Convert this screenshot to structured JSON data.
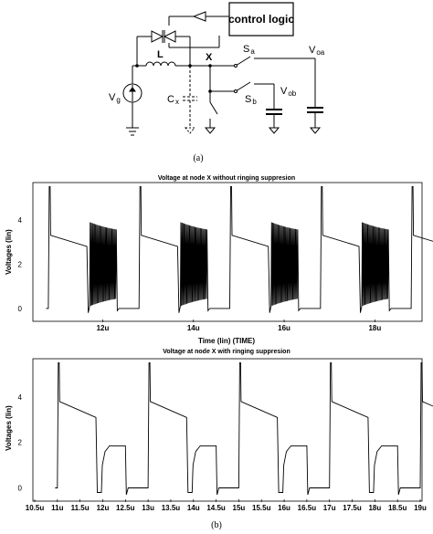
{
  "circuit": {
    "control_label": "control logic",
    "labels": {
      "L": "L",
      "X": "X",
      "Sa": "S",
      "Sa_sub": "a",
      "Sb": "S",
      "Sb_sub": "b",
      "Voa": "V",
      "Voa_sub": "oa",
      "Vob": "V",
      "Vob_sub": "ob",
      "Vg": "V",
      "Vg_sub": "g",
      "Cx": "C",
      "Cx_sub": "x"
    }
  },
  "captions": {
    "a": "(a)",
    "b": "(b)"
  },
  "chart_data": [
    {
      "type": "line",
      "title": "Voltage at node X without ringing suppresion",
      "xlabel": "Time (lin) (TIME)",
      "ylabel": "Voltages (lin)",
      "x_ticks": [
        "12u",
        "14u",
        "16u",
        "18u"
      ],
      "y_ticks": [
        "0",
        "2",
        "4"
      ],
      "ylim": [
        -0.5,
        5.6
      ],
      "xlim": [
        10.5,
        19.0
      ],
      "period_us": 2.0,
      "cycle_start_us": 10.8,
      "peak_v": 5.5,
      "plateau_v": [
        3.3,
        2.8
      ],
      "ring_center_v": 2.0,
      "ring_amplitude_v": 1.9,
      "low_v": 0.0
    },
    {
      "type": "line",
      "title": "Voltage at node X with ringing suppresion",
      "xlabel": "",
      "ylabel": "Voltages (lin)",
      "x_ticks": [
        "10.5u",
        "11u",
        "11.5u",
        "12u",
        "12.5u",
        "13u",
        "13.5u",
        "14u",
        "14.5u",
        "15u",
        "15.5u",
        "16u",
        "16.5u",
        "17u",
        "17.5u",
        "18u",
        "18.5u",
        "19u"
      ],
      "y_ticks": [
        "0",
        "2",
        "4"
      ],
      "ylim": [
        -0.5,
        5.6
      ],
      "xlim": [
        10.5,
        19.0
      ],
      "period_us": 2.0,
      "cycle_start_us": 11.0,
      "peak_v": 5.5,
      "plateau_v": [
        3.8,
        3.1
      ],
      "clamp_v": 1.85,
      "low_v": 0.0
    }
  ]
}
